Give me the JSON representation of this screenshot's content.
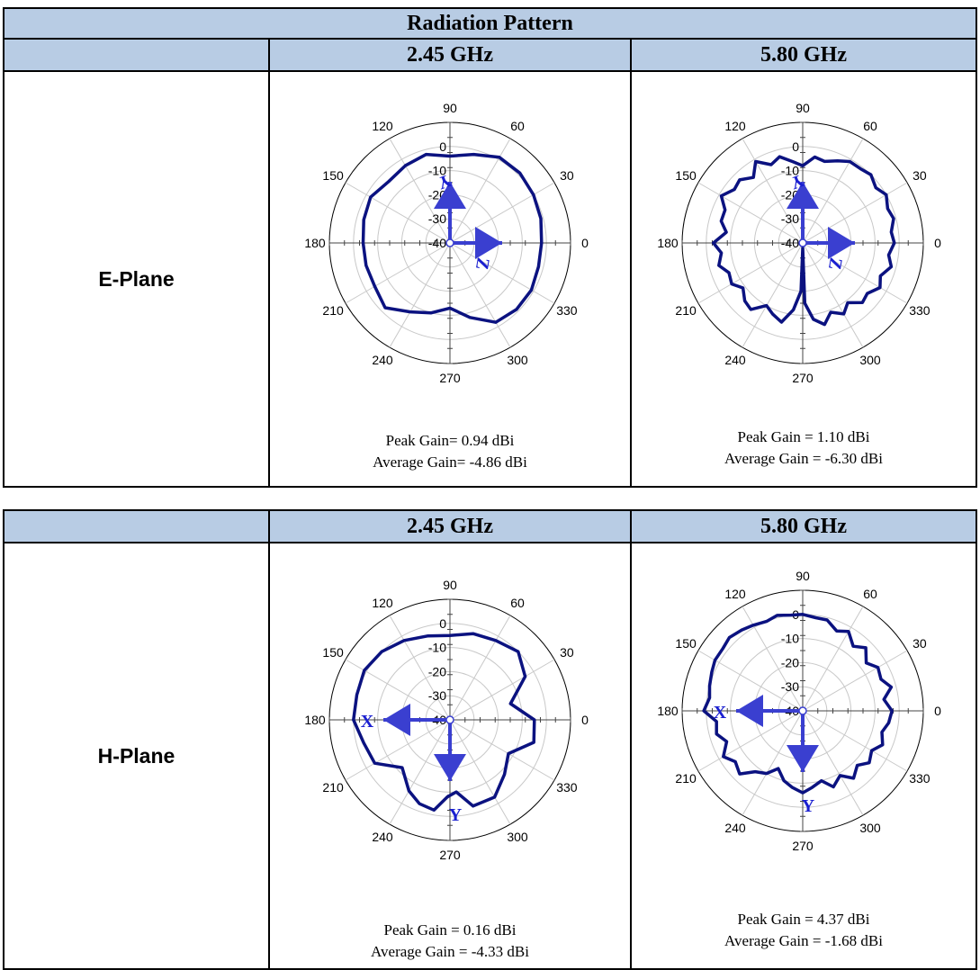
{
  "table_title": "Radiation Pattern",
  "freq_headers": [
    "2.45 GHz",
    "5.80 GHz"
  ],
  "row_labels": {
    "e_plane": "E-Plane",
    "h_plane": "H-Plane"
  },
  "colors": {
    "header_bg": "#b8cce4",
    "trace": "#0b1280",
    "arrow": "#3a3fd0",
    "arrow_label": "#1a1fd0",
    "grid": "#c8c8c8"
  },
  "gains": {
    "e_245": {
      "peak": "Peak Gain= 0.94 dBi",
      "avg": "Average Gain= -4.86 dBi"
    },
    "e_580": {
      "peak": "Peak Gain = 1.10 dBi",
      "avg": "Average Gain = -6.30 dBi"
    },
    "h_245": {
      "peak": "Peak Gain = 0.16 dBi",
      "avg": "Average Gain = -4.33 dBi"
    },
    "h_580": {
      "peak": "Peak Gain = 4.37 dBi",
      "avg": "Average Gain = -1.68 dBi"
    }
  },
  "chart_data": [
    {
      "type": "polar-line",
      "id": "e_245",
      "angle_ticks": [
        0,
        30,
        60,
        90,
        120,
        150,
        180,
        210,
        240,
        270,
        300,
        330
      ],
      "radial_ticks": [
        0,
        -10,
        -20,
        -30,
        -40
      ],
      "rlim": [
        -40,
        10
      ],
      "angles": [
        0,
        15,
        30,
        45,
        60,
        75,
        90,
        105,
        120,
        135,
        150,
        165,
        180,
        195,
        210,
        225,
        240,
        255,
        270,
        285,
        300,
        315,
        330,
        345
      ],
      "values": [
        -2,
        -1,
        0,
        1,
        1,
        -2,
        -4,
        -2,
        -3,
        -4,
        -2,
        -3,
        -4,
        -4,
        -4,
        -2,
        -7,
        -10,
        -13,
        -8,
        -2,
        -1,
        -1,
        -2
      ],
      "axes_labels": [
        "Y",
        "Z"
      ]
    },
    {
      "type": "polar-line",
      "id": "e_580",
      "angle_ticks": [
        0,
        30,
        60,
        90,
        120,
        150,
        180,
        210,
        240,
        270,
        300,
        330
      ],
      "radial_ticks": [
        0,
        -10,
        -20,
        -30,
        -40
      ],
      "rlim": [
        -40,
        10
      ],
      "angles": [
        0,
        7,
        15,
        22,
        30,
        37,
        45,
        52,
        60,
        67,
        75,
        82,
        90,
        97,
        105,
        112,
        120,
        127,
        135,
        142,
        150,
        157,
        165,
        172,
        180,
        187,
        195,
        202,
        210,
        217,
        225,
        232,
        240,
        247,
        255,
        262,
        268,
        270,
        272,
        278,
        285,
        292,
        300,
        307,
        315,
        322,
        330,
        337,
        345,
        352
      ],
      "values": [
        -2,
        -3,
        -1,
        -2,
        0,
        -2,
        0,
        -1,
        -1,
        -3,
        -5,
        -4,
        -8,
        -6,
        -3,
        -5,
        -1,
        -6,
        -3,
        -4,
        -1,
        -5,
        -5,
        -8,
        -3,
        -6,
        -4,
        -7,
        -6,
        -9,
        -6,
        -5,
        -10,
        -8,
        -6,
        -12,
        -20,
        -38,
        -15,
        -8,
        -5,
        -9,
        -6,
        -9,
        -5,
        -6,
        -3,
        -5,
        -2,
        -4
      ],
      "axes_labels": [
        "Y",
        "Z"
      ]
    },
    {
      "type": "polar-line",
      "id": "h_245",
      "angle_ticks": [
        0,
        30,
        60,
        90,
        120,
        150,
        180,
        210,
        240,
        270,
        300,
        330
      ],
      "radial_ticks": [
        0,
        -10,
        -20,
        -30,
        -40
      ],
      "rlim": [
        -40,
        10
      ],
      "angles": [
        0,
        15,
        30,
        45,
        60,
        75,
        90,
        105,
        120,
        135,
        150,
        165,
        180,
        195,
        210,
        225,
        240,
        250,
        260,
        268,
        275,
        285,
        300,
        315,
        330,
        345
      ],
      "values": [
        -5,
        -14,
        -4,
        0,
        -2,
        -3,
        -5,
        -4,
        -2,
        0,
        1,
        0,
        0,
        -3,
        -4,
        -12,
        -6,
        -3,
        -2,
        -8,
        -10,
        -3,
        -3,
        -8,
        -12,
        -4
      ],
      "axes_labels": [
        "X",
        "Y"
      ]
    },
    {
      "type": "polar-line",
      "id": "h_580",
      "angle_ticks": [
        0,
        30,
        60,
        90,
        120,
        150,
        180,
        210,
        240,
        270,
        300,
        330
      ],
      "radial_ticks": [
        0,
        -10,
        -20,
        -30,
        -40
      ],
      "rlim": [
        -40,
        10
      ],
      "angles": [
        0,
        8,
        15,
        22,
        30,
        37,
        45,
        52,
        60,
        67,
        75,
        82,
        90,
        97,
        105,
        112,
        120,
        127,
        135,
        142,
        150,
        157,
        165,
        172,
        180,
        187,
        195,
        202,
        210,
        217,
        225,
        232,
        240,
        247,
        255,
        262,
        270,
        277,
        285,
        292,
        300,
        307,
        315,
        322,
        330,
        337,
        345,
        352
      ],
      "values": [
        -3,
        -6,
        -2,
        -5,
        -4,
        -7,
        -3,
        -6,
        -2,
        -4,
        -1,
        -1,
        0,
        0,
        1,
        0,
        1,
        2,
        3,
        2,
        2,
        1,
        0,
        -1,
        1,
        -4,
        -3,
        -6,
        -2,
        -5,
        -3,
        -8,
        -10,
        -14,
        -10,
        -8,
        -6,
        -8,
        -10,
        -6,
        -9,
        -5,
        -8,
        -5,
        -7,
        -4,
        -6,
        -4
      ],
      "axes_labels": [
        "X",
        "Y"
      ]
    }
  ]
}
